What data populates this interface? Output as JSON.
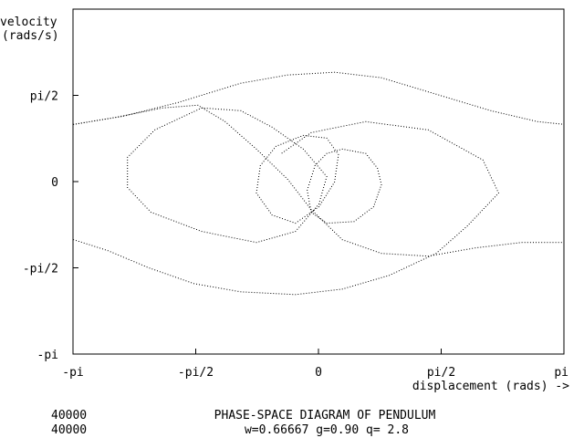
{
  "chart_data": {
    "type": "scatter",
    "title": "PHASE-SPACE DIAGRAM OF PENDULUM",
    "subtitle": "w=0.66667 g=0.90 q=  2.8",
    "ylabel_line1": "velocity",
    "ylabel_line2": "(rads/s)",
    "xlabel": "displacement (rads) ->",
    "step_counts": [
      "40000",
      "40000"
    ],
    "xlim": [
      -3.14159,
      3.14159
    ],
    "ylim": [
      -3.14159,
      3.14159
    ],
    "x_ticks": [
      {
        "value": -3.14159,
        "label": "-pi"
      },
      {
        "value": -1.5708,
        "label": "-pi/2"
      },
      {
        "value": 0,
        "label": "0"
      },
      {
        "value": 1.5708,
        "label": "pi/2"
      },
      {
        "value": 3.14159,
        "label": "pi"
      }
    ],
    "y_ticks": [
      {
        "value": 1.5708,
        "label": "pi/2"
      },
      {
        "value": 0,
        "label": "0"
      },
      {
        "value": -1.5708,
        "label": "-pi/2"
      },
      {
        "value": -3.14159,
        "label": "-pi"
      }
    ],
    "grid": false,
    "marker": "dot",
    "series": [
      {
        "values": [
          [
            -3.14,
            1.05
          ],
          [
            -2.6,
            1.18
          ],
          [
            -2.0,
            1.35
          ],
          [
            -1.55,
            1.4
          ],
          [
            -1.2,
            1.1
          ],
          [
            -0.8,
            0.6
          ],
          [
            -0.4,
            0.05
          ],
          [
            -0.1,
            -0.5
          ],
          [
            0.3,
            -1.05
          ],
          [
            0.8,
            -1.3
          ],
          [
            1.4,
            -1.35
          ],
          [
            2.0,
            -1.2
          ],
          [
            2.6,
            -1.1
          ],
          [
            3.14,
            -1.1
          ]
        ]
      },
      {
        "values": [
          [
            -3.14,
            -1.05
          ],
          [
            -2.7,
            -1.25
          ],
          [
            -2.2,
            -1.55
          ],
          [
            -1.6,
            -1.85
          ],
          [
            -1.0,
            -2.0
          ],
          [
            -0.3,
            -2.05
          ],
          [
            0.3,
            -1.95
          ],
          [
            0.9,
            -1.7
          ],
          [
            1.5,
            -1.3
          ],
          [
            1.9,
            -0.8
          ],
          [
            2.3,
            -0.2
          ],
          [
            2.1,
            0.4
          ],
          [
            1.4,
            0.95
          ],
          [
            0.6,
            1.1
          ],
          [
            -0.1,
            0.9
          ],
          [
            -0.5,
            0.5
          ]
        ]
      },
      {
        "values": [
          [
            -3.14,
            1.05
          ],
          [
            -2.5,
            1.2
          ],
          [
            -1.8,
            1.45
          ],
          [
            -1.0,
            1.8
          ],
          [
            -0.4,
            1.95
          ],
          [
            0.2,
            2.0
          ],
          [
            0.8,
            1.9
          ],
          [
            1.5,
            1.6
          ],
          [
            2.2,
            1.3
          ],
          [
            2.8,
            1.1
          ],
          [
            3.14,
            1.05
          ]
        ]
      },
      {
        "values": [
          [
            -1.5,
            1.35
          ],
          [
            -2.1,
            0.95
          ],
          [
            -2.45,
            0.45
          ],
          [
            -2.45,
            -0.1
          ],
          [
            -2.15,
            -0.55
          ],
          [
            -1.5,
            -0.9
          ],
          [
            -0.8,
            -1.1
          ],
          [
            -0.3,
            -0.9
          ],
          [
            0.0,
            -0.4
          ],
          [
            0.1,
            0.1
          ],
          [
            -0.2,
            0.6
          ],
          [
            -0.6,
            1.0
          ],
          [
            -1.0,
            1.3
          ],
          [
            -1.5,
            1.35
          ]
        ]
      },
      {
        "values": [
          [
            0.3,
            0.6
          ],
          [
            0.6,
            0.52
          ],
          [
            0.75,
            0.25
          ],
          [
            0.8,
            -0.05
          ],
          [
            0.7,
            -0.45
          ],
          [
            0.45,
            -0.72
          ],
          [
            0.1,
            -0.75
          ],
          [
            -0.1,
            -0.55
          ],
          [
            -0.15,
            -0.15
          ],
          [
            -0.05,
            0.3
          ],
          [
            0.1,
            0.52
          ],
          [
            0.3,
            0.6
          ]
        ]
      },
      {
        "values": [
          [
            -0.3,
            -0.75
          ],
          [
            -0.6,
            -0.6
          ],
          [
            -0.8,
            -0.2
          ],
          [
            -0.75,
            0.3
          ],
          [
            -0.55,
            0.65
          ],
          [
            -0.2,
            0.85
          ],
          [
            0.1,
            0.8
          ],
          [
            0.25,
            0.5
          ],
          [
            0.2,
            0.0
          ],
          [
            0.0,
            -0.45
          ],
          [
            -0.3,
            -0.75
          ]
        ]
      }
    ]
  }
}
